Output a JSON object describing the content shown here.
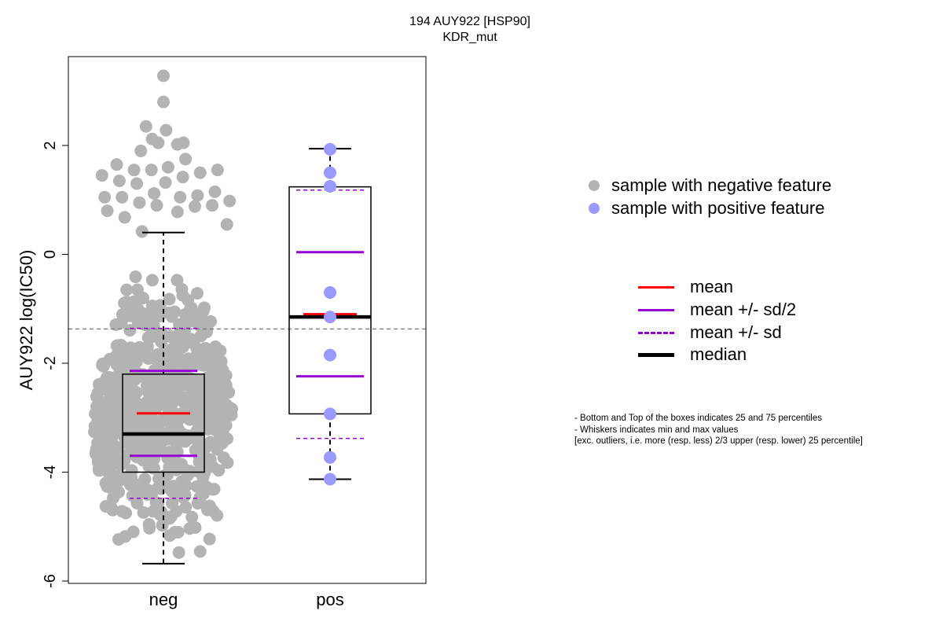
{
  "chart_data": {
    "type": "box",
    "title": "194 AUY922 [HSP90]",
    "subtitle": "KDR_mut",
    "xlabel": "",
    "ylabel": "AUY922 log(IC50)",
    "categories": [
      "neg",
      "pos"
    ],
    "ylim": [
      -6,
      3.4
    ],
    "yticks": [
      -6,
      -4,
      -2,
      0,
      2
    ],
    "reference_line_y": -1.37,
    "groups": [
      {
        "name": "neg",
        "color": "#b3b3b3",
        "whisker_min": -5.68,
        "q1": -4.0,
        "median": -3.3,
        "q3": -2.2,
        "whisker_max": 0.4,
        "mean": -2.92,
        "mean_minus_sd_half": -3.7,
        "mean_plus_sd_half": -2.14,
        "mean_minus_sd": -4.48,
        "mean_plus_sd": -1.36,
        "outliers": [
          3.28,
          2.8,
          2.35,
          2.28,
          2.12,
          2.05,
          2.05,
          2.02,
          1.9,
          1.75,
          1.65,
          1.6,
          1.55,
          1.55,
          1.55,
          1.5,
          1.45,
          1.42,
          1.35,
          1.32,
          1.3,
          1.15,
          1.12,
          1.08,
          1.05,
          1.05,
          1.05,
          0.98,
          0.95,
          0.9,
          0.9,
          0.88,
          0.8,
          0.78,
          0.68,
          0.55,
          0.42
        ]
      },
      {
        "name": "pos",
        "color": "#9999ff",
        "whisker_min": -4.13,
        "q1": -2.93,
        "median": -1.15,
        "q3": 1.24,
        "whisker_max": 1.94,
        "mean": -1.1,
        "mean_minus_sd_half": -2.24,
        "mean_plus_sd_half": 0.04,
        "mean_minus_sd": -3.38,
        "mean_plus_sd": 1.18,
        "points": [
          1.93,
          1.5,
          1.25,
          -0.7,
          -1.15,
          -1.85,
          -2.93,
          -3.73,
          -4.13
        ]
      }
    ],
    "legend_points": [
      {
        "label": "sample with negative feature",
        "color": "#b3b3b3"
      },
      {
        "label": "sample with positive feature",
        "color": "#9999ff"
      }
    ],
    "legend_lines": [
      {
        "label": "mean",
        "color": "#ff0000",
        "style": "solid"
      },
      {
        "label": "mean +/- sd/2",
        "color": "#9400d3",
        "style": "solid"
      },
      {
        "label": "mean +/- sd",
        "color": "#9400d3",
        "style": "dashed"
      },
      {
        "label": "median",
        "color": "#000000",
        "style": "solid-thick"
      }
    ],
    "notes": [
      "- Bottom and Top of the boxes indicates 25 and 75 percentiles",
      "- Whiskers indicates min and max values",
      "[exc. outliers, i.e. more (resp. less) 2/3 upper (resp. lower) 25 percentile]"
    ]
  }
}
